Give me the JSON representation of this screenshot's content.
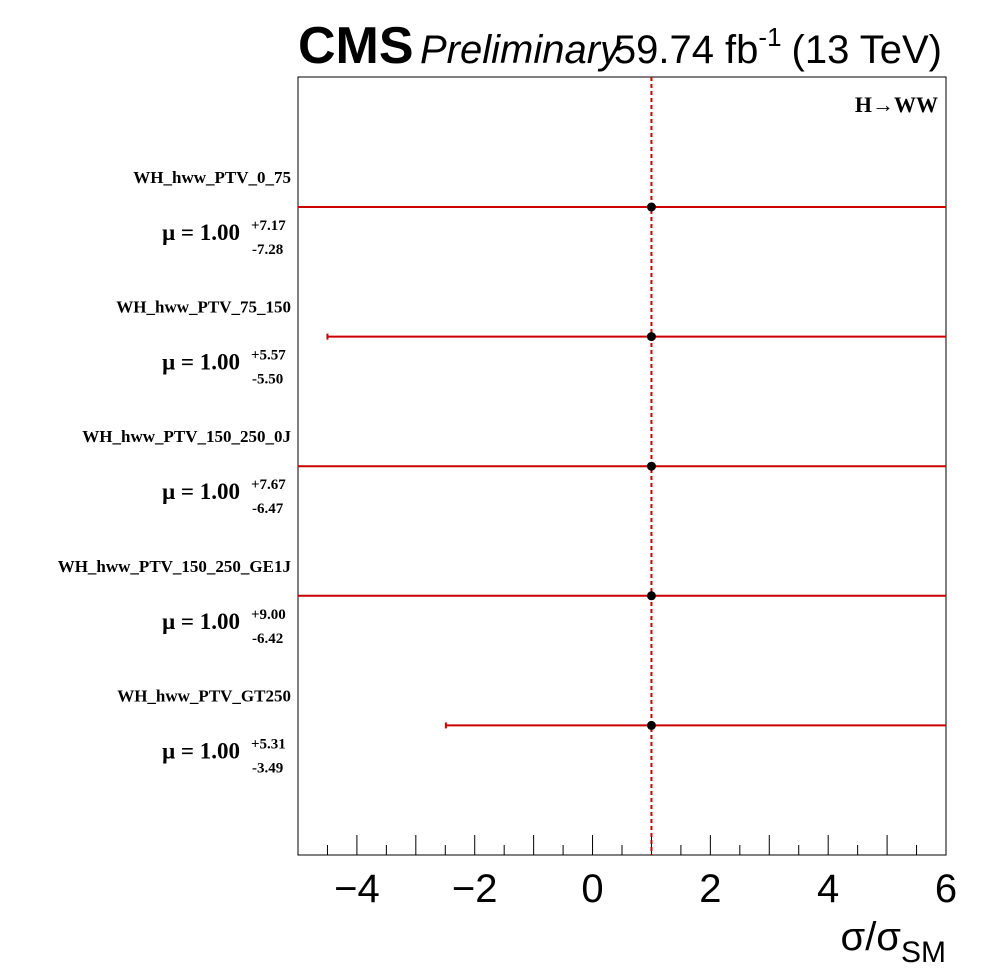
{
  "header": {
    "experiment": "CMS",
    "status": "Preliminary",
    "lumi": "59.74 fb",
    "lumi_exp": "-1",
    "energy": "(13 TeV)"
  },
  "chart_data": {
    "type": "scatter",
    "channel_label": "H→WW",
    "xlabel_main": "σ/σ",
    "xlabel_sub": "SM",
    "xlim": [
      -5,
      6
    ],
    "xticks": [
      -4,
      -2,
      0,
      2,
      4,
      6
    ],
    "xtick_labels": [
      "−4",
      "−2",
      "0",
      "2",
      "4",
      "6"
    ],
    "reference_line": 1,
    "colors": {
      "error_bar": "#cc0000",
      "reference": "#cc0000",
      "marker": "#000000"
    },
    "points": [
      {
        "name": "WH_hww_PTV_0_75",
        "mu": 1.0,
        "up": 7.17,
        "down": 7.28,
        "mu_label": "μ = 1.00",
        "up_label": "+7.17",
        "down_label": "-7.28"
      },
      {
        "name": "WH_hww_PTV_75_150",
        "mu": 1.0,
        "up": 5.57,
        "down": 5.5,
        "mu_label": "μ = 1.00",
        "up_label": "+5.57",
        "down_label": "-5.50"
      },
      {
        "name": "WH_hww_PTV_150_250_0J",
        "mu": 1.0,
        "up": 7.67,
        "down": 6.47,
        "mu_label": "μ = 1.00",
        "up_label": "+7.67",
        "down_label": "-6.47"
      },
      {
        "name": "WH_hww_PTV_150_250_GE1J",
        "mu": 1.0,
        "up": 9.0,
        "down": 6.42,
        "mu_label": "μ = 1.00",
        "up_label": "+9.00",
        "down_label": "-6.42"
      },
      {
        "name": "WH_hww_PTV_GT250",
        "mu": 1.0,
        "up": 5.31,
        "down": 3.49,
        "mu_label": "μ = 1.00",
        "up_label": "+5.31",
        "down_label": "-3.49"
      }
    ]
  }
}
